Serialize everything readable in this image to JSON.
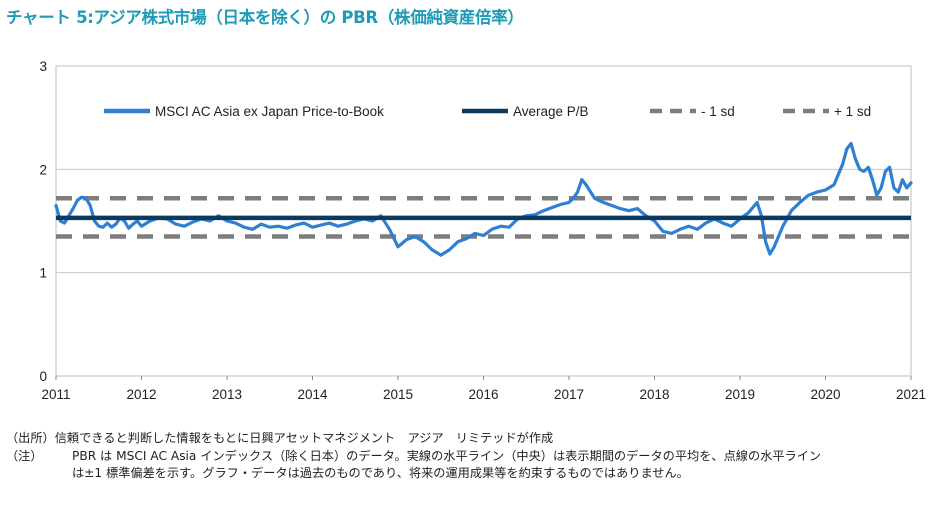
{
  "header": {
    "title": "チャート 5:アジア株式市場（日本を除く）の PBR（株価純資産倍率）"
  },
  "colors": {
    "title": "#1f9bb5",
    "series_pb": "#2f7fd3",
    "average": "#0b3a61",
    "sd_bands": "#7d7d7d"
  },
  "chart_data": {
    "type": "line",
    "ylim": [
      0,
      3
    ],
    "yticks": [
      "0",
      "1",
      "2",
      "3"
    ],
    "xlim": [
      2011,
      2021
    ],
    "xticks": [
      "2011",
      "2012",
      "2013",
      "2014",
      "2015",
      "2016",
      "2017",
      "2018",
      "2019",
      "2020",
      "2021"
    ],
    "grid": "horizontal",
    "legend_position": "top",
    "legend": [
      {
        "label": "MSCI AC Asia ex Japan Price-to-Book",
        "style": "solid-light"
      },
      {
        "label": "Average P/B",
        "style": "solid-dark"
      },
      {
        "label": "- 1 sd",
        "style": "dashed"
      },
      {
        "label": "+ 1 sd",
        "style": "dashed"
      }
    ],
    "average": 1.53,
    "minus_1sd": 1.35,
    "plus_1sd": 1.72,
    "series": [
      {
        "name": "MSCI AC Asia ex Japan Price-to-Book",
        "x": [
          2011.0,
          2011.05,
          2011.1,
          2011.15,
          2011.2,
          2011.25,
          2011.3,
          2011.35,
          2011.4,
          2011.45,
          2011.5,
          2011.55,
          2011.6,
          2011.65,
          2011.7,
          2011.75,
          2011.8,
          2011.85,
          2011.9,
          2011.95,
          2012.0,
          2012.1,
          2012.2,
          2012.3,
          2012.4,
          2012.5,
          2012.6,
          2012.7,
          2012.8,
          2012.9,
          2013.0,
          2013.1,
          2013.2,
          2013.3,
          2013.4,
          2013.5,
          2013.6,
          2013.7,
          2013.8,
          2013.9,
          2014.0,
          2014.1,
          2014.2,
          2014.3,
          2014.4,
          2014.5,
          2014.6,
          2014.7,
          2014.8,
          2014.9,
          2015.0,
          2015.1,
          2015.2,
          2015.3,
          2015.4,
          2015.5,
          2015.6,
          2015.7,
          2015.8,
          2015.9,
          2016.0,
          2016.1,
          2016.2,
          2016.3,
          2016.4,
          2016.5,
          2016.6,
          2016.7,
          2016.8,
          2016.9,
          2017.0,
          2017.05,
          2017.1,
          2017.15,
          2017.2,
          2017.3,
          2017.4,
          2017.5,
          2017.6,
          2017.7,
          2017.8,
          2017.9,
          2018.0,
          2018.1,
          2018.2,
          2018.3,
          2018.4,
          2018.5,
          2018.6,
          2018.7,
          2018.8,
          2018.9,
          2019.0,
          2019.1,
          2019.2,
          2019.25,
          2019.3,
          2019.35,
          2019.4,
          2019.45,
          2019.5,
          2019.55,
          2019.6,
          2019.7,
          2019.8,
          2019.9,
          2020.0,
          2020.1,
          2020.15,
          2020.2,
          2020.25,
          2020.3,
          2020.35,
          2020.4,
          2020.45,
          2020.5,
          2020.55,
          2020.6,
          2020.65,
          2020.7,
          2020.75,
          2020.8,
          2020.85,
          2020.9,
          2020.95,
          2021.0
        ],
        "values": [
          1.65,
          1.5,
          1.48,
          1.55,
          1.62,
          1.7,
          1.73,
          1.72,
          1.65,
          1.5,
          1.45,
          1.44,
          1.48,
          1.44,
          1.47,
          1.53,
          1.5,
          1.43,
          1.47,
          1.5,
          1.45,
          1.5,
          1.53,
          1.52,
          1.47,
          1.45,
          1.49,
          1.52,
          1.5,
          1.55,
          1.5,
          1.48,
          1.44,
          1.42,
          1.47,
          1.44,
          1.45,
          1.43,
          1.46,
          1.48,
          1.44,
          1.46,
          1.48,
          1.45,
          1.47,
          1.5,
          1.52,
          1.5,
          1.55,
          1.42,
          1.25,
          1.32,
          1.35,
          1.3,
          1.22,
          1.17,
          1.22,
          1.3,
          1.33,
          1.38,
          1.36,
          1.42,
          1.45,
          1.44,
          1.52,
          1.55,
          1.56,
          1.6,
          1.63,
          1.66,
          1.68,
          1.72,
          1.78,
          1.9,
          1.85,
          1.72,
          1.68,
          1.65,
          1.62,
          1.6,
          1.62,
          1.55,
          1.5,
          1.4,
          1.38,
          1.42,
          1.45,
          1.42,
          1.48,
          1.52,
          1.48,
          1.45,
          1.52,
          1.58,
          1.68,
          1.55,
          1.3,
          1.18,
          1.25,
          1.35,
          1.45,
          1.52,
          1.6,
          1.68,
          1.75,
          1.78,
          1.8,
          1.85,
          1.95,
          2.05,
          2.2,
          2.25,
          2.1,
          2.0,
          1.98,
          2.02,
          1.9,
          1.75,
          1.82,
          1.98,
          2.02,
          1.82,
          1.78,
          1.9,
          1.82,
          1.87
        ]
      }
    ]
  },
  "notes": {
    "source_label": "（出所）",
    "source_text": "信頼できると判断した情報をもとに日興アセットマネジメント　アジア　リミテッドが作成",
    "note_label": "（注）",
    "note_line1": "PBR は MSCI AC Asia インデックス（除く日本）のデータ。実線の水平ライン（中央）は表示期間のデータの平均を、点線の水平ライン",
    "note_line2": "は±1 標準偏差を示す。グラフ・データは過去のものであり、将来の運用成果等を約束するものではありません。"
  }
}
